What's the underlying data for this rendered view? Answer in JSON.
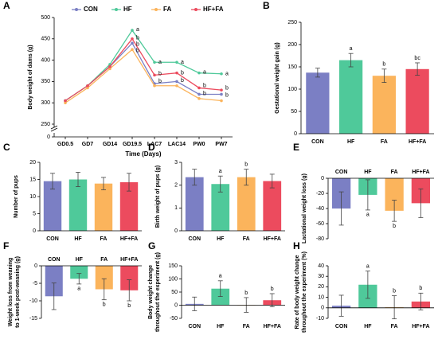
{
  "chart_data": [
    {
      "type": "line",
      "panel_label": "A",
      "ylabel": [
        "Body weight of dams (g)"
      ],
      "xlabel": "Time (Days)",
      "categories": [
        "GD0.5",
        "GD7",
        "GD14",
        "GD19.5",
        "LAC7",
        "LAC14",
        "PW0",
        "PW7"
      ],
      "series": [
        {
          "name": "CON",
          "color": "#7b7fc4",
          "values": [
            305,
            340,
            385,
            440,
            345,
            350,
            320,
            320
          ]
        },
        {
          "name": "HF",
          "color": "#4fc99a",
          "values": [
            305,
            340,
            390,
            470,
            395,
            395,
            370,
            368
          ]
        },
        {
          "name": "FA",
          "color": "#fbb45c",
          "values": [
            300,
            335,
            380,
            425,
            340,
            340,
            310,
            305
          ]
        },
        {
          "name": "HF+FA",
          "color": "#ec4b5e",
          "values": [
            305,
            340,
            385,
            450,
            365,
            370,
            335,
            330
          ]
        }
      ],
      "annotations": [
        {
          "text": "a",
          "category": "GD19.5",
          "y": 472
        },
        {
          "text": "b",
          "category": "GD19.5",
          "y": 452
        },
        {
          "text": "b",
          "category": "GD19.5",
          "y": 437
        },
        {
          "text": "b",
          "category": "GD19.5",
          "y": 422
        },
        {
          "text": "a",
          "category": "LAC7",
          "y": 395
        },
        {
          "text": "b",
          "category": "LAC7",
          "y": 368
        },
        {
          "text": "b",
          "category": "LAC7",
          "y": 350
        },
        {
          "text": "a",
          "category": "LAC14",
          "y": 395
        },
        {
          "text": "b",
          "category": "LAC14",
          "y": 370
        },
        {
          "text": "b",
          "category": "LAC14",
          "y": 352
        },
        {
          "text": "a",
          "category": "PW0",
          "y": 372
        },
        {
          "text": "b",
          "category": "PW0",
          "y": 340
        },
        {
          "text": "b",
          "category": "PW0",
          "y": 322
        },
        {
          "text": "a",
          "category": "PW7",
          "y": 368
        },
        {
          "text": "b",
          "category": "PW7",
          "y": 335
        },
        {
          "text": "b",
          "category": "PW7",
          "y": 318
        }
      ],
      "ylim": [
        0,
        500
      ],
      "y_break": [
        0,
        250
      ],
      "yticks": [
        0,
        250,
        300,
        350,
        400,
        450,
        500
      ],
      "legend": "top"
    },
    {
      "type": "bar",
      "panel_label": "B",
      "ylabel": [
        "Gestational weight gain (g)"
      ],
      "categories": [
        "CON",
        "HF",
        "FA",
        "HF+FA"
      ],
      "colors": [
        "#7b7fc4",
        "#4fc99a",
        "#fbb45c",
        "#ec4b5e"
      ],
      "values": [
        137,
        165,
        130,
        145
      ],
      "errors": [
        10,
        15,
        15,
        14
      ],
      "letters": [
        null,
        "a",
        "b",
        "bc"
      ],
      "ylim": [
        0,
        250
      ],
      "yticks": [
        0,
        50,
        100,
        150,
        200,
        250
      ]
    },
    {
      "type": "bar",
      "panel_label": "C",
      "ylabel": [
        "Number of pups"
      ],
      "categories": [
        "CON",
        "HF",
        "FA",
        "HF+FA"
      ],
      "colors": [
        "#7b7fc4",
        "#4fc99a",
        "#fbb45c",
        "#ec4b5e"
      ],
      "values": [
        14.5,
        15,
        13.8,
        14.2
      ],
      "errors": [
        2.3,
        2.1,
        1.8,
        2.6
      ],
      "letters": [
        null,
        null,
        null,
        null
      ],
      "ylim": [
        0,
        20
      ],
      "yticks": [
        0,
        5,
        10,
        15,
        20
      ]
    },
    {
      "type": "bar",
      "panel_label": "D",
      "ylabel": [
        "Birth weight of pups (g)"
      ],
      "categories": [
        "CON",
        "HF",
        "FA",
        "HF+FA"
      ],
      "colors": [
        "#7b7fc4",
        "#4fc99a",
        "#fbb45c",
        "#ec4b5e"
      ],
      "values": [
        2.35,
        2.05,
        2.35,
        2.18
      ],
      "errors": [
        0.35,
        0.35,
        0.35,
        0.3
      ],
      "letters": [
        null,
        "a",
        "b",
        null
      ],
      "ylim": [
        0,
        3
      ],
      "yticks": [
        0,
        1,
        2,
        3
      ]
    },
    {
      "type": "bar",
      "panel_label": "E",
      "ylabel": [
        "Lactational weight loss (g)"
      ],
      "categories": [
        "CON",
        "HF",
        "FA",
        "HF+FA"
      ],
      "colors": [
        "#7b7fc4",
        "#4fc99a",
        "#fbb45c",
        "#ec4b5e"
      ],
      "values": [
        -40,
        -22,
        -43,
        -33
      ],
      "errors": [
        22,
        20,
        14,
        19
      ],
      "letters": [
        null,
        "a",
        "b",
        null
      ],
      "ylim": [
        -80,
        0
      ],
      "yticks": [
        -80,
        -60,
        -40,
        -20,
        0
      ]
    },
    {
      "type": "bar",
      "panel_label": "F",
      "ylabel": [
        "Weight loss from weaning",
        "to 1-week post-weaning (g)"
      ],
      "categories": [
        "CON",
        "HF",
        "FA",
        "HF+FA"
      ],
      "colors": [
        "#7b7fc4",
        "#4fc99a",
        "#fbb45c",
        "#ec4b5e"
      ],
      "values": [
        -8.7,
        -3.7,
        -6.7,
        -7
      ],
      "errors": [
        3.8,
        1.5,
        3,
        3
      ],
      "letters": [
        null,
        "a",
        "b",
        "b"
      ],
      "ylim": [
        -15,
        0
      ],
      "yticks": [
        -15,
        -10,
        -5,
        0
      ]
    },
    {
      "type": "bar",
      "panel_label": "G",
      "ylabel": [
        "Body weight change",
        "throughout the experiment (g)"
      ],
      "categories": [
        "CON",
        "HF",
        "FA",
        "HF+FA"
      ],
      "colors": [
        "#7b7fc4",
        "#4fc99a",
        "#fbb45c",
        "#ec4b5e"
      ],
      "values": [
        5,
        63,
        1,
        19
      ],
      "errors": [
        26,
        30,
        28,
        25
      ],
      "letters": [
        null,
        "a",
        "b",
        "b"
      ],
      "ylim": [
        -50,
        150
      ],
      "yticks": [
        -50,
        0,
        50,
        100,
        150
      ]
    },
    {
      "type": "bar",
      "panel_label": "H",
      "ylabel": [
        "Rate of body weight change",
        "throughout the experiment (%)"
      ],
      "categories": [
        "CON",
        "HF",
        "FA",
        "HF+FA"
      ],
      "colors": [
        "#7b7fc4",
        "#4fc99a",
        "#fbb45c",
        "#ec4b5e"
      ],
      "values": [
        2,
        22,
        0.5,
        6
      ],
      "errors": [
        10,
        13,
        11,
        8
      ],
      "letters": [
        null,
        "a",
        "b",
        "b"
      ],
      "ylim": [
        -10,
        40
      ],
      "yticks": [
        -10,
        0,
        10,
        20,
        30,
        40
      ]
    }
  ]
}
